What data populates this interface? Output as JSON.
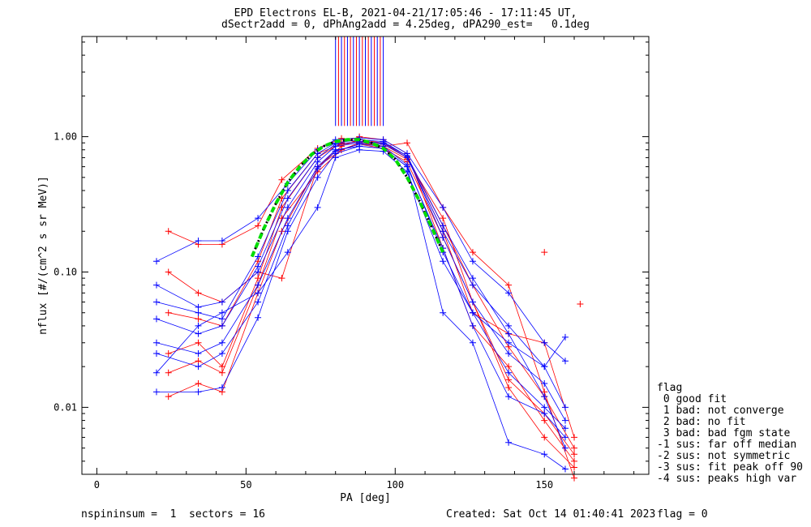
{
  "title_line1": "EPD Electrons EL-B, 2021-04-21/17:05:46 - 17:11:45 UT,",
  "title_line2": "dSectr2add = 0, dPhAng2add = 4.25deg, dPA290_est=   0.1deg",
  "footer": {
    "left": "nspininsum =  1  sectors = 16",
    "created": "Created: Sat Oct 14 01:40:41 2023",
    "flag": "flag = 0"
  },
  "legend": {
    "title": "flag",
    "items": [
      " 0 good fit",
      " 1 bad: not converge",
      " 2 bad: no fit",
      " 3 bad: bad fgm state",
      "-1 sus: far off median",
      "-2 sus: not symmetric",
      "-3 sus: fit peak off 90",
      "-4 sus: peaks high var"
    ]
  },
  "colors": {
    "red_series": "#ff0000",
    "blue_series": "#0000ff",
    "fit_green": "#00dd00",
    "fit_black": "#000000"
  },
  "chart_data": {
    "type": "scatter",
    "xlabel": "PA [deg]",
    "ylabel": "nflux [#/(cm^2 s sr MeV)]",
    "xlim": [
      -5,
      185
    ],
    "ylim": [
      0.0032,
      5.5
    ],
    "yscale": "log",
    "x_ticks": [
      0,
      50,
      100,
      150
    ],
    "x_tick_labels": [
      "0",
      "50",
      "100",
      "150"
    ],
    "y_ticks": [
      0.01,
      0.1,
      1.0
    ],
    "y_tick_labels": [
      "0.01",
      "0.10",
      "1.00"
    ],
    "grid": false,
    "series": [
      {
        "color": "red",
        "x": [
          24,
          34,
          42,
          54,
          62,
          74,
          82,
          88,
          96,
          104,
          116,
          126,
          138,
          150,
          160
        ],
        "y": [
          0.2,
          0.16,
          0.16,
          0.22,
          0.48,
          0.82,
          0.97,
          0.9,
          0.85,
          0.9,
          0.3,
          0.14,
          0.08,
          0.013,
          0.003
        ]
      },
      {
        "color": "red",
        "x": [
          24,
          34,
          42,
          54,
          62,
          74,
          82,
          88,
          96,
          104,
          116,
          126,
          138,
          150,
          160
        ],
        "y": [
          0.012,
          0.015,
          0.013,
          0.07,
          0.2,
          0.6,
          0.85,
          0.95,
          0.9,
          0.7,
          0.2,
          0.05,
          0.035,
          0.03,
          0.006
        ]
      },
      {
        "color": "red",
        "x": [
          24,
          34,
          42,
          54,
          62,
          74,
          82,
          88,
          96,
          104,
          116,
          126,
          138,
          150,
          160
        ],
        "y": [
          0.025,
          0.03,
          0.02,
          0.09,
          0.3,
          0.7,
          0.9,
          1.0,
          0.95,
          0.75,
          0.15,
          0.04,
          0.02,
          0.008,
          0.004
        ]
      },
      {
        "color": "red",
        "x": [
          24,
          34,
          42,
          54,
          62,
          74,
          82,
          88,
          96,
          104,
          116,
          126,
          138,
          150,
          160
        ],
        "y": [
          0.05,
          0.045,
          0.04,
          0.12,
          0.35,
          0.75,
          0.88,
          0.92,
          0.88,
          0.7,
          0.22,
          0.08,
          0.028,
          0.012,
          0.005
        ]
      },
      {
        "color": "red",
        "x": [
          24,
          34,
          42,
          54,
          62,
          74,
          82,
          88,
          96,
          104,
          116,
          126,
          138,
          150,
          160
        ],
        "y": [
          0.1,
          0.07,
          0.06,
          0.1,
          0.09,
          0.6,
          0.8,
          0.88,
          0.82,
          0.65,
          0.18,
          0.06,
          0.016,
          0.009,
          0.0045
        ]
      },
      {
        "color": "red",
        "x": [
          24,
          34,
          42,
          54,
          62,
          74,
          82,
          88,
          96,
          104,
          116,
          126,
          138,
          150,
          160
        ],
        "y": [
          0.018,
          0.022,
          0.018,
          0.08,
          0.25,
          0.55,
          0.8,
          0.9,
          0.85,
          0.68,
          0.25,
          0.06,
          0.014,
          0.006,
          0.0036
        ]
      },
      {
        "color": "red",
        "x": [
          150
        ],
        "y": [
          0.14
        ]
      },
      {
        "color": "red",
        "x": [
          162
        ],
        "y": [
          0.058
        ]
      },
      {
        "color": "blue",
        "x": [
          20,
          34,
          42,
          54,
          64,
          74,
          80,
          88,
          96,
          104,
          116,
          126,
          138,
          150,
          157
        ],
        "y": [
          0.12,
          0.17,
          0.17,
          0.25,
          0.45,
          0.8,
          0.95,
          0.98,
          0.95,
          0.75,
          0.3,
          0.12,
          0.07,
          0.03,
          0.022
        ]
      },
      {
        "color": "blue",
        "x": [
          20,
          34,
          42,
          54,
          64,
          74,
          80,
          88,
          96,
          104,
          116,
          126,
          138,
          150,
          157
        ],
        "y": [
          0.013,
          0.013,
          0.014,
          0.046,
          0.2,
          0.5,
          0.75,
          0.85,
          0.82,
          0.6,
          0.05,
          0.03,
          0.0055,
          0.0045,
          0.0035
        ]
      },
      {
        "color": "blue",
        "x": [
          20,
          34,
          42,
          54,
          64,
          74,
          80,
          88,
          96,
          104,
          116,
          126,
          138,
          150,
          157
        ],
        "y": [
          0.08,
          0.055,
          0.06,
          0.1,
          0.3,
          0.65,
          0.85,
          0.9,
          0.88,
          0.7,
          0.2,
          0.08,
          0.04,
          0.02,
          0.01
        ]
      },
      {
        "color": "blue",
        "x": [
          20,
          34,
          42,
          54,
          64,
          74,
          80,
          88,
          96,
          104,
          116,
          126,
          138,
          150,
          157
        ],
        "y": [
          0.03,
          0.025,
          0.03,
          0.08,
          0.25,
          0.6,
          0.8,
          0.85,
          0.82,
          0.6,
          0.15,
          0.04,
          0.012,
          0.009,
          0.006
        ]
      },
      {
        "color": "blue",
        "x": [
          20,
          34,
          42,
          54,
          64,
          74,
          80,
          88,
          96,
          104,
          116,
          126,
          138,
          150,
          157
        ],
        "y": [
          0.045,
          0.035,
          0.04,
          0.11,
          0.35,
          0.7,
          0.88,
          0.92,
          0.9,
          0.72,
          0.18,
          0.06,
          0.025,
          0.015,
          0.008
        ]
      },
      {
        "color": "blue",
        "x": [
          20,
          34,
          42,
          54,
          64,
          74,
          80,
          88,
          96,
          104,
          116,
          126,
          138,
          150,
          157
        ],
        "y": [
          0.018,
          0.04,
          0.05,
          0.07,
          0.14,
          0.3,
          0.7,
          0.8,
          0.78,
          0.55,
          0.12,
          0.05,
          0.03,
          0.02,
          0.033
        ]
      },
      {
        "color": "blue",
        "x": [
          20,
          34,
          42,
          54,
          64,
          74,
          80,
          88,
          96,
          104,
          116,
          126,
          138,
          150,
          157
        ],
        "y": [
          0.06,
          0.05,
          0.045,
          0.13,
          0.4,
          0.75,
          0.9,
          0.95,
          0.92,
          0.72,
          0.22,
          0.09,
          0.035,
          0.012,
          0.005
        ]
      },
      {
        "color": "blue",
        "x": [
          20,
          34,
          42,
          54,
          64,
          74,
          80,
          88,
          96,
          104,
          116,
          126,
          138,
          150,
          157
        ],
        "y": [
          0.025,
          0.02,
          0.025,
          0.06,
          0.22,
          0.58,
          0.78,
          0.88,
          0.85,
          0.62,
          0.14,
          0.05,
          0.018,
          0.01,
          0.007
        ]
      }
    ],
    "fit_curve": {
      "x": [
        52,
        56,
        60,
        64,
        68,
        72,
        76,
        80,
        84,
        88,
        92,
        96,
        100,
        104,
        108,
        112,
        116
      ],
      "y": [
        0.13,
        0.21,
        0.32,
        0.46,
        0.6,
        0.74,
        0.85,
        0.92,
        0.95,
        0.95,
        0.9,
        0.82,
        0.68,
        0.5,
        0.34,
        0.22,
        0.14
      ]
    },
    "top_ticks_x": [
      80,
      81,
      82,
      83,
      84,
      85,
      86,
      87,
      88,
      89,
      90,
      91,
      92,
      93,
      94,
      95,
      96
    ]
  }
}
